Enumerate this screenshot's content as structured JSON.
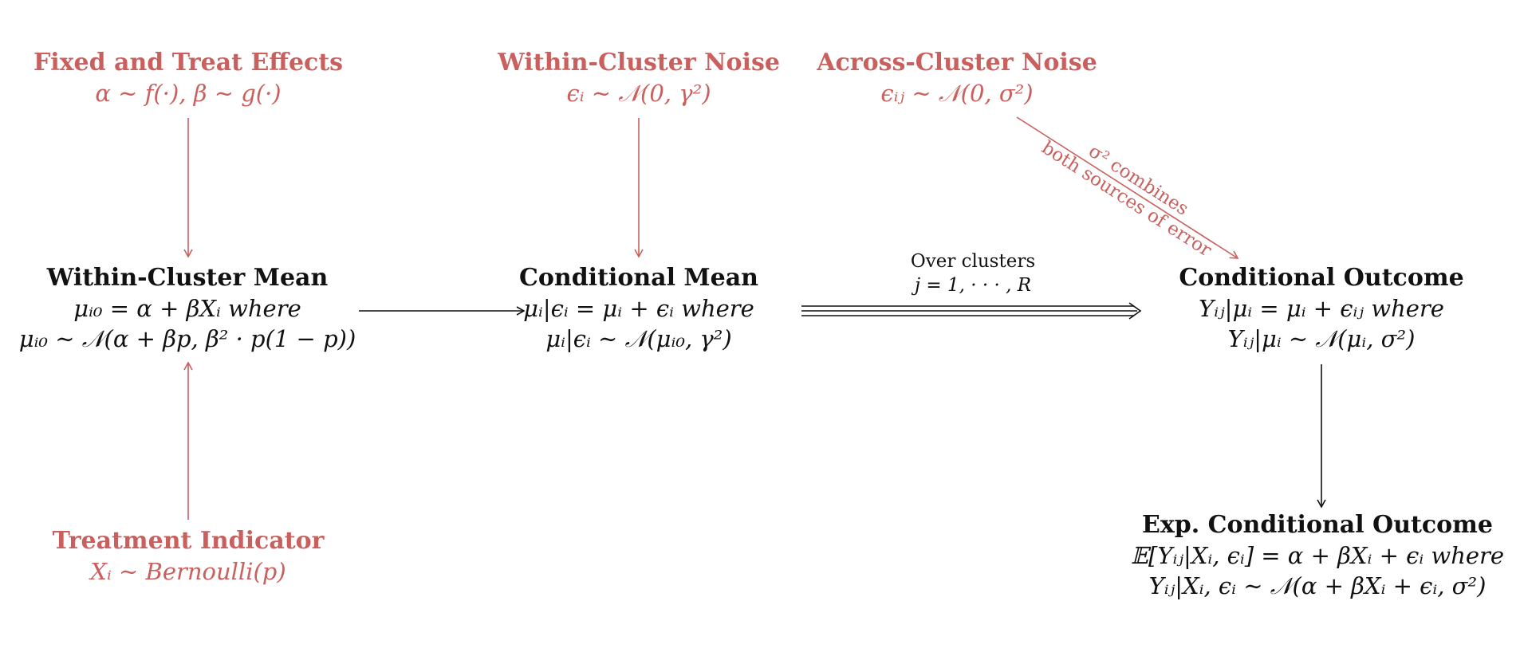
{
  "nodes": {
    "fixed_effects": {
      "title": "Fixed and Treat Effects",
      "lines": [
        "α ∼ f(·), β ∼ g(·)"
      ]
    },
    "within_noise": {
      "title": "Within-Cluster Noise",
      "lines": [
        "ϵᵢ ∼ 𝒩(0, γ²)"
      ]
    },
    "across_noise": {
      "title": "Across-Cluster Noise",
      "lines": [
        "ϵᵢⱼ ∼ 𝒩(0, σ²)"
      ]
    },
    "within_mean": {
      "title": "Within-Cluster Mean",
      "lines": [
        "μᵢ₀ = α + βXᵢ where",
        "μᵢ₀ ∼ 𝒩(α + βp, β² · p(1 − p))"
      ]
    },
    "cond_mean": {
      "title": "Conditional Mean",
      "lines": [
        "μᵢ|ϵᵢ = μᵢ + ϵᵢ where",
        "μᵢ|ϵᵢ ∼ 𝒩(μᵢ₀, γ²)"
      ]
    },
    "cond_outcome": {
      "title": "Conditional Outcome",
      "lines": [
        "Yᵢⱼ|μᵢ = μᵢ + ϵᵢⱼ where",
        "Yᵢⱼ|μᵢ ∼ 𝒩(μᵢ, σ²)"
      ]
    },
    "treatment": {
      "title": "Treatment Indicator",
      "lines": [
        "Xᵢ ∼ Bernoulli(p)"
      ]
    },
    "exp_outcome": {
      "title": "Exp. Conditional Outcome",
      "lines": [
        "𝔼[Yᵢⱼ|Xᵢ, ϵᵢ] = α + βXᵢ + ϵᵢ where",
        "Yᵢⱼ|Xᵢ, ϵᵢ ∼ 𝒩(α + βXᵢ + ϵᵢ, σ²)"
      ]
    }
  },
  "edge_labels": {
    "over_clusters": [
      "Over clusters",
      "j = 1, · · · , R"
    ],
    "sigma_combines": [
      "σ² combines",
      "both sources of error"
    ]
  },
  "colors": {
    "accent": "#c9605e",
    "text": "#111111"
  }
}
